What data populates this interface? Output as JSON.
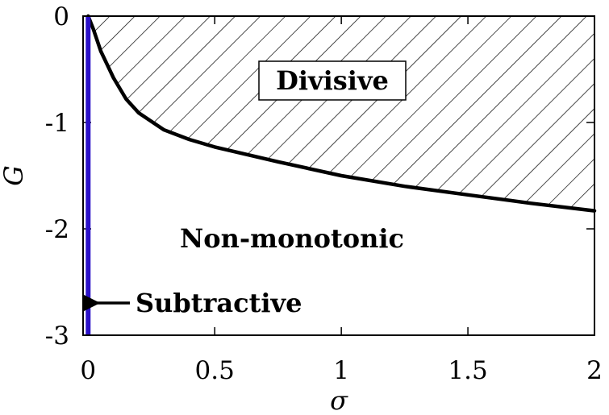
{
  "chart_data": {
    "type": "line",
    "title": "",
    "xlabel": "σ",
    "ylabel": "G",
    "xlim": [
      -0.02,
      2
    ],
    "ylim": [
      -3,
      0
    ],
    "x_ticks": [
      0,
      0.5,
      1,
      1.5,
      2
    ],
    "x_tick_labels": [
      "0",
      "0.5",
      "1",
      "1.5",
      "2"
    ],
    "y_ticks": [
      0,
      -1,
      -2,
      -3
    ],
    "y_tick_labels": [
      "0",
      "-1",
      "-2",
      "-3"
    ],
    "grid": false,
    "series": [
      {
        "style": "black boundary curve",
        "color": "#000000",
        "points": [
          {
            "x": 0.0,
            "y": 0.0
          },
          {
            "x": 0.02,
            "y": -0.12
          },
          {
            "x": 0.05,
            "y": -0.33
          },
          {
            "x": 0.1,
            "y": -0.58
          },
          {
            "x": 0.15,
            "y": -0.78
          },
          {
            "x": 0.2,
            "y": -0.91
          },
          {
            "x": 0.3,
            "y": -1.07
          },
          {
            "x": 0.4,
            "y": -1.16
          },
          {
            "x": 0.5,
            "y": -1.23
          },
          {
            "x": 0.75,
            "y": -1.37
          },
          {
            "x": 1.0,
            "y": -1.5
          },
          {
            "x": 1.25,
            "y": -1.6
          },
          {
            "x": 1.5,
            "y": -1.68
          },
          {
            "x": 1.75,
            "y": -1.76
          },
          {
            "x": 2.0,
            "y": -1.83
          }
        ]
      },
      {
        "style": "blue vertical line at sigma = 0",
        "color": "#2a10c8",
        "points": [
          {
            "x": 0.0,
            "y": 0.0
          },
          {
            "x": 0.0,
            "y": -3.0
          }
        ]
      }
    ],
    "regions": {
      "divisive": "Divisive",
      "non_monotonic": "Non-monotonic",
      "subtractive": "Subtractive"
    }
  }
}
